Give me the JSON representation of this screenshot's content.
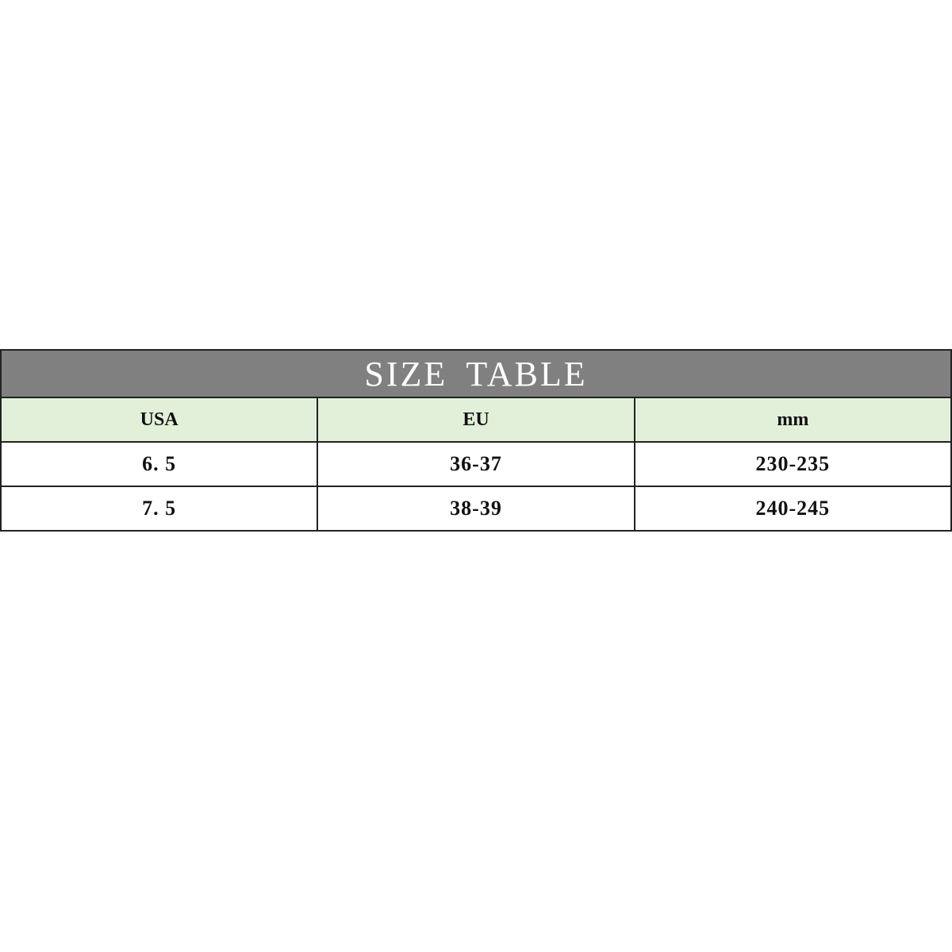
{
  "table": {
    "title": "SIZE TABLE",
    "columns": [
      "USA",
      "EU",
      "mm"
    ],
    "rows": [
      [
        "6. 5",
        "36-37",
        "230-235"
      ],
      [
        "7. 5",
        "38-39",
        "240-245"
      ]
    ],
    "colors": {
      "title_bg": "#808080",
      "header_bg": "#e2f0d9"
    }
  }
}
